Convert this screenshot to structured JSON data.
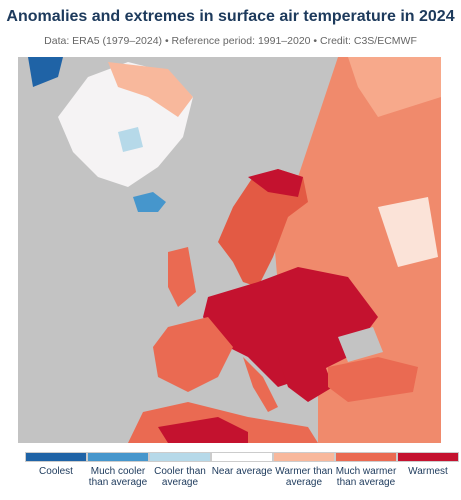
{
  "header": {
    "title": "Anomalies and extremes in surface air temperature in 2024",
    "subtitle": "Data: ERA5 (1979–2024) • Reference period: 1991–2020 • Credit: C3S/ECMWF"
  },
  "legend": {
    "items": [
      {
        "label": "Coolest",
        "color": "#1f63a6"
      },
      {
        "label": "Much cooler than average",
        "color": "#4696cc"
      },
      {
        "label": "Cooler than average",
        "color": "#b6d9e9"
      },
      {
        "label": "Near average",
        "color": "#ffffff"
      },
      {
        "label": "Warmer than average",
        "color": "#f8b89c"
      },
      {
        "label": "Much warmer than average",
        "color": "#ea6a52"
      },
      {
        "label": "Warmest",
        "color": "#c4122f"
      }
    ]
  }
}
